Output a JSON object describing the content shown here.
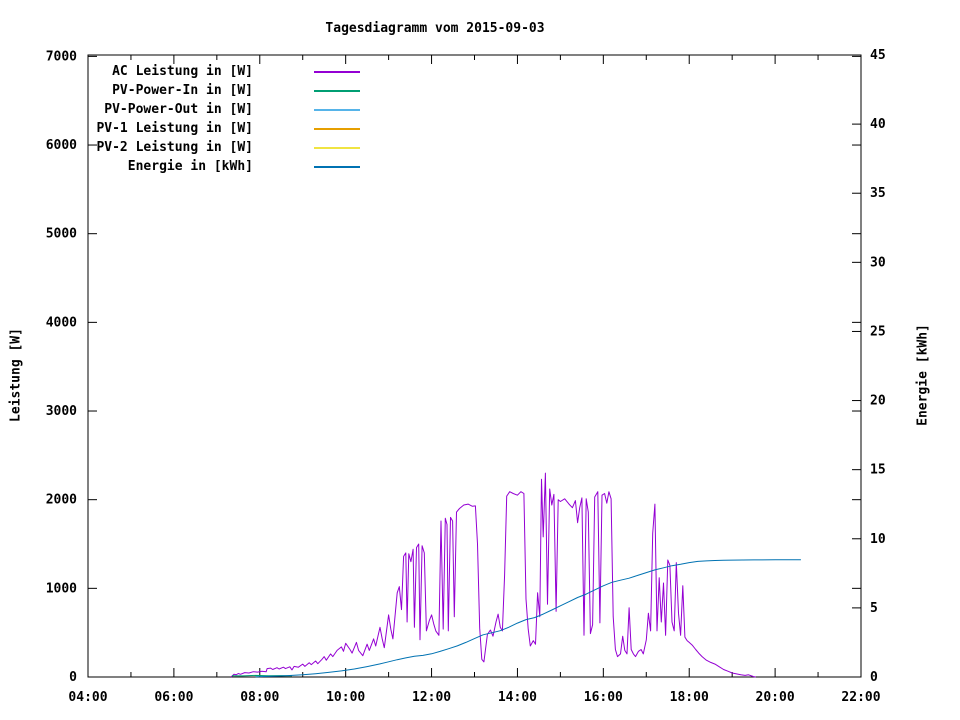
{
  "title": "Tagesdiagramm vom 2015-09-03",
  "axes": {
    "left_label": "Leistung [W]",
    "right_label": "Energie [kWh]"
  },
  "legend": [
    {
      "label": "AC Leistung in [W]",
      "color": "#9400d3"
    },
    {
      "label": "PV-Power-In in [W]",
      "color": "#009e73"
    },
    {
      "label": "PV-Power-Out in [W]",
      "color": "#56b4e9"
    },
    {
      "label": "PV-1 Leistung in [W]",
      "color": "#e69f00"
    },
    {
      "label": "PV-2 Leistung in [W]",
      "color": "#f0e442"
    },
    {
      "label": "Energie in [kWh]",
      "color": "#0072b2"
    }
  ],
  "colors": {
    "background": "#ffffff",
    "border": "#000000",
    "ac_power": "#9400d3",
    "pv_power_in": "#009e73",
    "pv_power_out": "#56b4e9",
    "pv1_power": "#e69f00",
    "pv2_power": "#f0e442",
    "energy": "#0072b2"
  },
  "chart_data": {
    "type": "line",
    "title": "Tagesdiagramm vom 2015-09-03",
    "xlabel": "",
    "x_unit_hours_range": [
      4,
      22
    ],
    "grid": false,
    "legend_position": "top-left-inside",
    "y_left": {
      "label": "Leistung [W]",
      "lim": [
        0,
        7320
      ],
      "ticks": [
        0,
        1000,
        2000,
        3000,
        4000,
        5000,
        6000,
        7000
      ],
      "tick_labels": [
        "0",
        "1000",
        "2000",
        "3000",
        "4000",
        "5000",
        "6000",
        "7000"
      ]
    },
    "y_right": {
      "label": "Energie [kWh]",
      "lim": [
        0,
        45
      ],
      "ticks": [
        0,
        5,
        10,
        15,
        20,
        25,
        30,
        35,
        40,
        45
      ],
      "tick_labels": [
        "0",
        "5",
        "10",
        "15",
        "20",
        "25",
        "30",
        "35",
        "40",
        "45"
      ]
    },
    "x_ticks_major": [
      {
        "hours": 4,
        "label": "04:00"
      },
      {
        "hours": 6,
        "label": "06:00"
      },
      {
        "hours": 8,
        "label": "08:00"
      },
      {
        "hours": 10,
        "label": "10:00"
      },
      {
        "hours": 12,
        "label": "12:00"
      },
      {
        "hours": 14,
        "label": "14:00"
      },
      {
        "hours": 16,
        "label": "16:00"
      },
      {
        "hours": 18,
        "label": "18:00"
      },
      {
        "hours": 20,
        "label": "20:00"
      },
      {
        "hours": 22,
        "label": "22:00"
      }
    ],
    "x_ticks_minor_hours": [
      5,
      7,
      9,
      11,
      13,
      15,
      17,
      19,
      21
    ],
    "series": [
      {
        "name": "AC Leistung in [W]",
        "axis": "left",
        "color": "#9400d3",
        "points": [
          [
            7.33,
            0
          ],
          [
            7.4,
            30
          ],
          [
            7.45,
            25
          ],
          [
            7.5,
            40
          ],
          [
            7.55,
            30
          ],
          [
            7.65,
            50
          ],
          [
            7.75,
            45
          ],
          [
            7.85,
            60
          ],
          [
            7.95,
            55
          ],
          [
            8.05,
            65
          ],
          [
            8.15,
            60
          ],
          [
            8.17,
            95
          ],
          [
            8.25,
            100
          ],
          [
            8.3,
            85
          ],
          [
            8.4,
            105
          ],
          [
            8.45,
            90
          ],
          [
            8.55,
            110
          ],
          [
            8.6,
            95
          ],
          [
            8.7,
            115
          ],
          [
            8.75,
            80
          ],
          [
            8.8,
            120
          ],
          [
            8.9,
            110
          ],
          [
            9.0,
            145
          ],
          [
            9.05,
            120
          ],
          [
            9.15,
            160
          ],
          [
            9.2,
            140
          ],
          [
            9.3,
            180
          ],
          [
            9.35,
            150
          ],
          [
            9.45,
            200
          ],
          [
            9.5,
            230
          ],
          [
            9.55,
            190
          ],
          [
            9.65,
            260
          ],
          [
            9.7,
            230
          ],
          [
            9.8,
            300
          ],
          [
            9.9,
            340
          ],
          [
            9.95,
            290
          ],
          [
            10.0,
            380
          ],
          [
            10.1,
            310
          ],
          [
            10.15,
            270
          ],
          [
            10.25,
            390
          ],
          [
            10.3,
            300
          ],
          [
            10.4,
            240
          ],
          [
            10.5,
            370
          ],
          [
            10.55,
            300
          ],
          [
            10.65,
            430
          ],
          [
            10.7,
            350
          ],
          [
            10.8,
            560
          ],
          [
            10.85,
            430
          ],
          [
            10.9,
            330
          ],
          [
            11.0,
            700
          ],
          [
            11.05,
            540
          ],
          [
            11.1,
            430
          ],
          [
            11.2,
            950
          ],
          [
            11.25,
            1020
          ],
          [
            11.3,
            760
          ],
          [
            11.35,
            1360
          ],
          [
            11.4,
            1400
          ],
          [
            11.43,
            620
          ],
          [
            11.47,
            1390
          ],
          [
            11.52,
            1300
          ],
          [
            11.57,
            1440
          ],
          [
            11.6,
            560
          ],
          [
            11.65,
            1460
          ],
          [
            11.7,
            1500
          ],
          [
            11.73,
            420
          ],
          [
            11.78,
            1480
          ],
          [
            11.83,
            1400
          ],
          [
            11.88,
            520
          ],
          [
            11.95,
            640
          ],
          [
            12.0,
            700
          ],
          [
            12.05,
            600
          ],
          [
            12.1,
            520
          ],
          [
            12.17,
            470
          ],
          [
            12.22,
            1760
          ],
          [
            12.27,
            540
          ],
          [
            12.32,
            1790
          ],
          [
            12.36,
            1720
          ],
          [
            12.39,
            520
          ],
          [
            12.44,
            1800
          ],
          [
            12.49,
            1760
          ],
          [
            12.53,
            680
          ],
          [
            12.58,
            1860
          ],
          [
            12.65,
            1900
          ],
          [
            12.75,
            1940
          ],
          [
            12.85,
            1950
          ],
          [
            12.95,
            1925
          ],
          [
            13.02,
            1930
          ],
          [
            13.07,
            1500
          ],
          [
            13.12,
            550
          ],
          [
            13.17,
            200
          ],
          [
            13.22,
            170
          ],
          [
            13.3,
            480
          ],
          [
            13.37,
            530
          ],
          [
            13.43,
            460
          ],
          [
            13.5,
            620
          ],
          [
            13.55,
            710
          ],
          [
            13.6,
            560
          ],
          [
            13.65,
            520
          ],
          [
            13.7,
            1150
          ],
          [
            13.75,
            2040
          ],
          [
            13.82,
            2090
          ],
          [
            13.9,
            2070
          ],
          [
            14.0,
            2050
          ],
          [
            14.08,
            2090
          ],
          [
            14.15,
            2070
          ],
          [
            14.2,
            880
          ],
          [
            14.25,
            540
          ],
          [
            14.3,
            350
          ],
          [
            14.37,
            410
          ],
          [
            14.42,
            370
          ],
          [
            14.47,
            950
          ],
          [
            14.52,
            680
          ],
          [
            14.56,
            2230
          ],
          [
            14.6,
            1580
          ],
          [
            14.65,
            2300
          ],
          [
            14.7,
            820
          ],
          [
            14.75,
            2120
          ],
          [
            14.8,
            1940
          ],
          [
            14.85,
            2060
          ],
          [
            14.9,
            740
          ],
          [
            14.95,
            2000
          ],
          [
            15.0,
            1980
          ],
          [
            15.1,
            2010
          ],
          [
            15.2,
            1950
          ],
          [
            15.28,
            1910
          ],
          [
            15.35,
            1990
          ],
          [
            15.4,
            1740
          ],
          [
            15.45,
            1910
          ],
          [
            15.5,
            2020
          ],
          [
            15.55,
            470
          ],
          [
            15.6,
            2010
          ],
          [
            15.65,
            1860
          ],
          [
            15.7,
            490
          ],
          [
            15.75,
            590
          ],
          [
            15.8,
            2030
          ],
          [
            15.87,
            2090
          ],
          [
            15.92,
            610
          ],
          [
            15.97,
            2050
          ],
          [
            16.03,
            2070
          ],
          [
            16.08,
            1960
          ],
          [
            16.13,
            2090
          ],
          [
            16.18,
            2010
          ],
          [
            16.23,
            680
          ],
          [
            16.28,
            310
          ],
          [
            16.33,
            230
          ],
          [
            16.4,
            260
          ],
          [
            16.45,
            460
          ],
          [
            16.5,
            300
          ],
          [
            16.55,
            260
          ],
          [
            16.6,
            780
          ],
          [
            16.65,
            310
          ],
          [
            16.7,
            260
          ],
          [
            16.75,
            230
          ],
          [
            16.82,
            290
          ],
          [
            16.88,
            310
          ],
          [
            16.93,
            260
          ],
          [
            17.0,
            420
          ],
          [
            17.05,
            720
          ],
          [
            17.1,
            520
          ],
          [
            17.15,
            1620
          ],
          [
            17.2,
            1950
          ],
          [
            17.25,
            520
          ],
          [
            17.3,
            1120
          ],
          [
            17.35,
            620
          ],
          [
            17.4,
            1060
          ],
          [
            17.45,
            470
          ],
          [
            17.5,
            1320
          ],
          [
            17.55,
            1260
          ],
          [
            17.6,
            620
          ],
          [
            17.65,
            520
          ],
          [
            17.7,
            1290
          ],
          [
            17.75,
            720
          ],
          [
            17.8,
            470
          ],
          [
            17.85,
            1030
          ],
          [
            17.9,
            450
          ],
          [
            17.95,
            410
          ],
          [
            18.0,
            390
          ],
          [
            18.07,
            360
          ],
          [
            18.15,
            310
          ],
          [
            18.22,
            270
          ],
          [
            18.3,
            230
          ],
          [
            18.4,
            190
          ],
          [
            18.5,
            165
          ],
          [
            18.6,
            145
          ],
          [
            18.7,
            115
          ],
          [
            18.8,
            85
          ],
          [
            18.9,
            65
          ],
          [
            19.0,
            45
          ],
          [
            19.1,
            35
          ],
          [
            19.2,
            25
          ],
          [
            19.3,
            18
          ],
          [
            19.38,
            25
          ],
          [
            19.45,
            12
          ],
          [
            19.5,
            5
          ],
          [
            19.55,
            0
          ]
        ]
      },
      {
        "name": "PV-Power-In in [W]",
        "axis": "left",
        "color": "#009e73",
        "points": [
          [
            7.35,
            15
          ],
          [
            7.6,
            12
          ],
          [
            7.9,
            18
          ],
          [
            8.2,
            14
          ],
          [
            8.5,
            16
          ],
          [
            8.75,
            12
          ]
        ]
      },
      {
        "name": "PV-Power-Out in [W]",
        "axis": "left",
        "color": "#56b4e9",
        "points": []
      },
      {
        "name": "PV-1 Leistung in [W]",
        "axis": "left",
        "color": "#e69f00",
        "points": []
      },
      {
        "name": "PV-2 Leistung in [W]",
        "axis": "left",
        "color": "#f0e442",
        "points": []
      },
      {
        "name": "Energie in [kWh]",
        "axis": "right",
        "color": "#0072b2",
        "points": [
          [
            7.9,
            0.02
          ],
          [
            8.2,
            0.04
          ],
          [
            8.5,
            0.07
          ],
          [
            8.8,
            0.12
          ],
          [
            9.0,
            0.16
          ],
          [
            9.3,
            0.24
          ],
          [
            9.6,
            0.33
          ],
          [
            9.9,
            0.44
          ],
          [
            10.2,
            0.58
          ],
          [
            10.5,
            0.75
          ],
          [
            10.8,
            0.95
          ],
          [
            11.0,
            1.1
          ],
          [
            11.2,
            1.25
          ],
          [
            11.4,
            1.38
          ],
          [
            11.6,
            1.5
          ],
          [
            11.8,
            1.56
          ],
          [
            12.0,
            1.68
          ],
          [
            12.2,
            1.85
          ],
          [
            12.4,
            2.05
          ],
          [
            12.6,
            2.25
          ],
          [
            12.8,
            2.5
          ],
          [
            13.0,
            2.78
          ],
          [
            13.2,
            3.05
          ],
          [
            13.4,
            3.2
          ],
          [
            13.6,
            3.35
          ],
          [
            13.8,
            3.6
          ],
          [
            14.0,
            3.9
          ],
          [
            14.2,
            4.15
          ],
          [
            14.4,
            4.3
          ],
          [
            14.6,
            4.55
          ],
          [
            14.8,
            4.85
          ],
          [
            15.0,
            5.15
          ],
          [
            15.2,
            5.45
          ],
          [
            15.4,
            5.75
          ],
          [
            15.6,
            6.0
          ],
          [
            15.8,
            6.3
          ],
          [
            16.0,
            6.6
          ],
          [
            16.2,
            6.85
          ],
          [
            16.4,
            7.0
          ],
          [
            16.6,
            7.15
          ],
          [
            16.8,
            7.35
          ],
          [
            17.0,
            7.55
          ],
          [
            17.2,
            7.75
          ],
          [
            17.4,
            7.9
          ],
          [
            17.6,
            8.05
          ],
          [
            17.8,
            8.15
          ],
          [
            18.0,
            8.28
          ],
          [
            18.2,
            8.36
          ],
          [
            18.4,
            8.4
          ],
          [
            18.6,
            8.43
          ],
          [
            18.8,
            8.45
          ],
          [
            19.0,
            8.46
          ],
          [
            19.5,
            8.47
          ],
          [
            20.0,
            8.48
          ],
          [
            20.6,
            8.48
          ]
        ]
      }
    ]
  }
}
